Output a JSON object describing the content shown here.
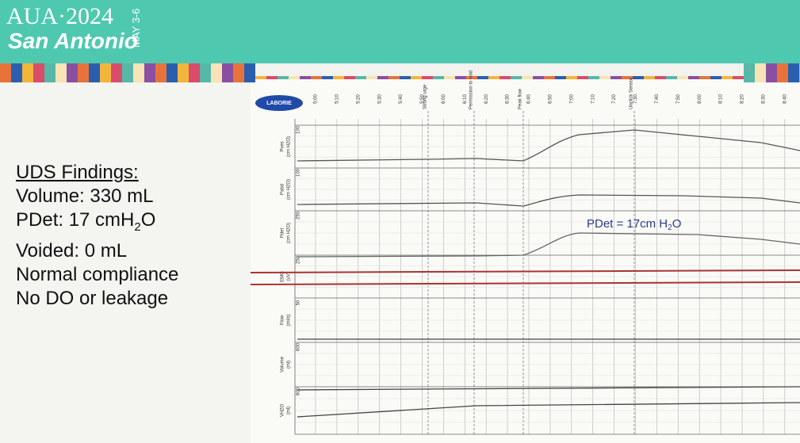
{
  "header": {
    "title": "AUA·2024",
    "city": "San Antonio",
    "dates": "MAY 3-6"
  },
  "findings": {
    "heading": "UDS Findings:",
    "lines": [
      {
        "parts": [
          "Volume: 330 mL"
        ]
      },
      {
        "parts": [
          "PDet: 17 cmH",
          "2",
          "O"
        ]
      },
      {
        "parts": [
          "Voided: 0 mL"
        ]
      },
      {
        "parts": [
          "Normal compliance"
        ]
      },
      {
        "parts": [
          "No DO or leakage"
        ]
      }
    ]
  },
  "tracing": {
    "logo": "LABORIE",
    "time_ticks": [
      "5:00",
      "5:10",
      "5:20",
      "5:30",
      "5:40",
      "5:50",
      "6:00",
      "6:10",
      "6:20",
      "6:30",
      "6:40",
      "6:50",
      "7:00",
      "7:10",
      "7:20",
      "7:30",
      "7:40",
      "7:50",
      "8:00",
      "8:10",
      "8:20",
      "8:30",
      "8:40"
    ],
    "events": [
      "Strong urge",
      "Permission to void",
      "Peak flow",
      "Unclick Sensor"
    ],
    "channels": [
      {
        "name": "Pves",
        "unit": "(cm H2O)",
        "scale": "100"
      },
      {
        "name": "Pabd",
        "unit": "(cm H2O)",
        "scale": "100"
      },
      {
        "name": "Pdet",
        "unit": "(cm H2O)",
        "scale": "250"
      },
      {
        "name": "EMG",
        "unit": "(uV)",
        "scale": "250"
      },
      {
        "name": "Flow",
        "unit": "(ml/s)",
        "scale": "50"
      },
      {
        "name": "Volume",
        "unit": "(ml)",
        "scale": "600"
      },
      {
        "name": "VH2O",
        "unit": "(ml)",
        "scale": "600"
      }
    ],
    "annotation": {
      "parts": [
        "PDet = 17cm H",
        "2",
        "O"
      ]
    }
  }
}
